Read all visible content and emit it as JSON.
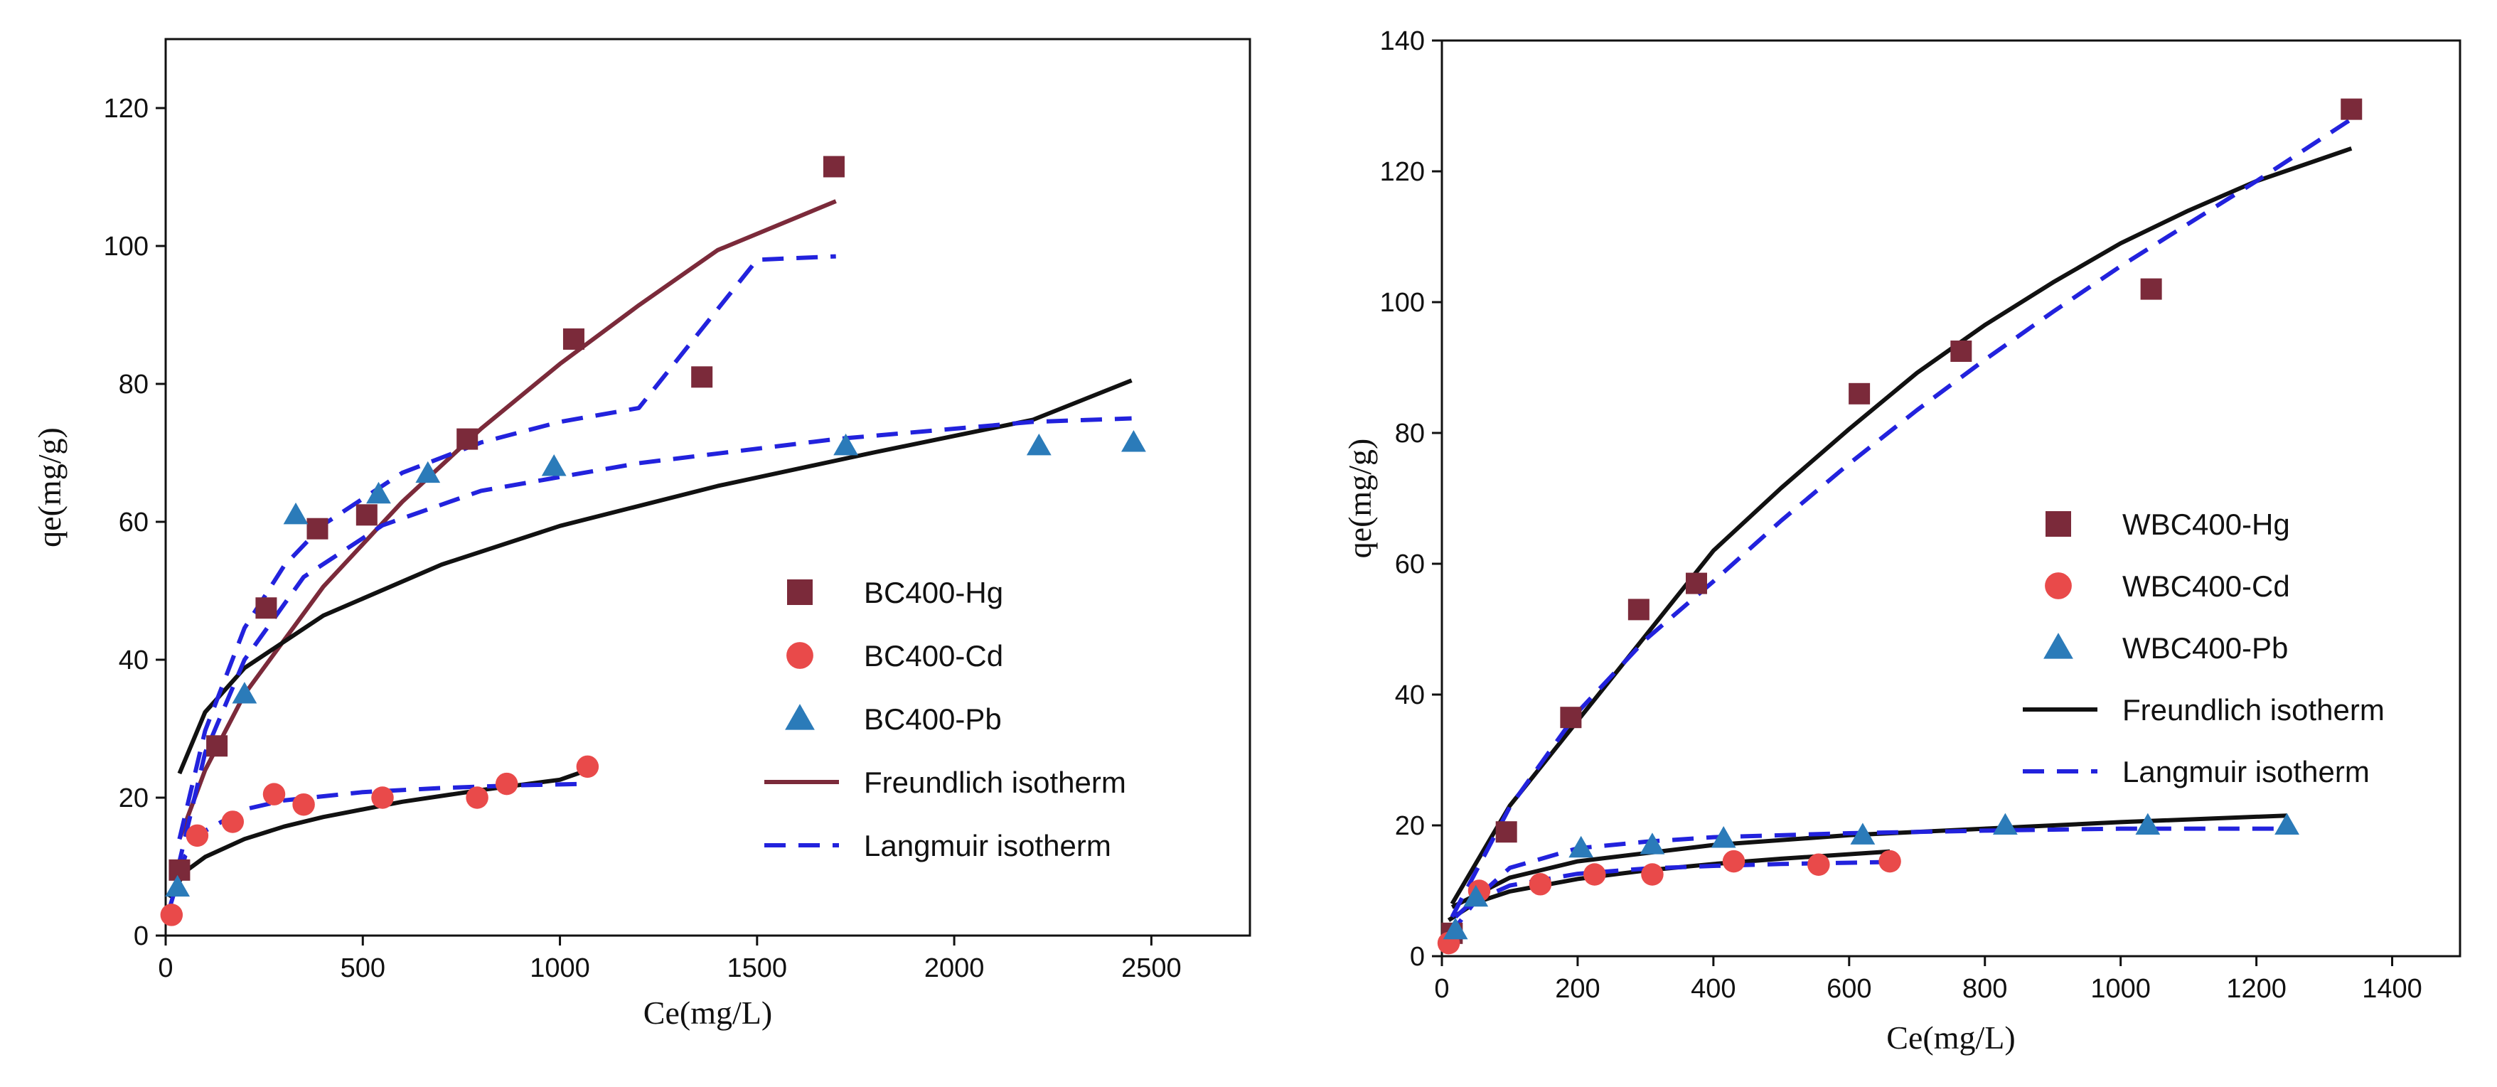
{
  "chart_data": [
    {
      "type": "scatter",
      "xlabel": "Ce(mg/L)",
      "ylabel": "qe(mg/g)",
      "xlim": [
        0,
        2750
      ],
      "ylim": [
        0,
        130
      ],
      "xticks": [
        0,
        500,
        1000,
        1500,
        2000,
        2500
      ],
      "yticks": [
        0,
        20,
        40,
        60,
        80,
        100,
        120
      ],
      "xtick_labels": [
        "0",
        "500",
        "1000",
        "1500",
        "2000",
        "2500"
      ],
      "ytick_labels": [
        "0",
        "20",
        "40",
        "60",
        "80",
        "100",
        "120"
      ],
      "legend_position": "center-right",
      "series": [
        {
          "name": "BC400-Hg",
          "kind": "points",
          "marker": "square",
          "color": "#7b2a3a",
          "x": [
            35,
            130,
            255,
            385,
            510,
            765,
            1035,
            1360,
            1695
          ],
          "y": [
            9.5,
            27.5,
            47.5,
            59,
            61,
            72,
            86.5,
            81,
            111.5
          ]
        },
        {
          "name": "BC400-Cd",
          "kind": "points",
          "marker": "circle",
          "color": "#e94a4a",
          "x": [
            15,
            80,
            170,
            275,
            350,
            550,
            790,
            865,
            1070
          ],
          "y": [
            3,
            14.5,
            16.5,
            20.5,
            19,
            20,
            20,
            22,
            24.5
          ]
        },
        {
          "name": "BC400-Pb",
          "kind": "points",
          "marker": "triangle",
          "color": "#2b7bb9",
          "x": [
            30,
            200,
            330,
            540,
            665,
            985,
            1725,
            2215,
            2455
          ],
          "y": [
            7,
            35,
            61,
            64,
            67,
            68,
            71,
            71,
            71.5
          ]
        },
        {
          "name": "Freundlich isotherm",
          "kind": "line",
          "color": "#7b2a3a",
          "dash": "solid",
          "x": [
            35,
            100,
            200,
            400,
            600,
            800,
            1000,
            1200,
            1400,
            1700
          ],
          "y": [
            14,
            24,
            35,
            50.6,
            62.9,
            73.5,
            82.9,
            91.4,
            99.4,
            106.5
          ]
        },
        {
          "name": "Freundlich isotherm (Pb)",
          "kind": "line",
          "color": "#111111",
          "dash": "solid",
          "in_legend": false,
          "x": [
            35,
            100,
            200,
            400,
            700,
            1000,
            1400,
            1800,
            2200,
            2450
          ],
          "y": [
            23.5,
            32.4,
            38.8,
            46.4,
            53.8,
            59.4,
            65.2,
            70.1,
            74.8,
            80.5
          ]
        },
        {
          "name": "Freundlich isotherm (Cd)",
          "kind": "line",
          "color": "#111111",
          "dash": "solid",
          "in_legend": false,
          "x": [
            10,
            50,
            100,
            200,
            300,
            400,
            600,
            800,
            1000,
            1070
          ],
          "y": [
            5.5,
            9.3,
            11.4,
            14,
            15.8,
            17.2,
            19.4,
            21.1,
            22.6,
            24
          ]
        },
        {
          "name": "Langmuir isotherm",
          "kind": "line",
          "color": "#2222dd",
          "dash": "dashed",
          "x": [
            35,
            100,
            200,
            300,
            400,
            600,
            800,
            1000,
            1200,
            1500,
            1700
          ],
          "y": [
            14,
            29.7,
            44.6,
            53.6,
            59.6,
            67.1,
            71.5,
            74.5,
            76.5,
            98,
            98.5
          ]
        },
        {
          "name": "Langmuir isotherm (Pb)",
          "kind": "line",
          "color": "#2222dd",
          "dash": "dashed",
          "in_legend": false,
          "x": [
            30,
            100,
            200,
            350,
            550,
            800,
            1200,
            1700,
            2200,
            2450
          ],
          "y": [
            9.5,
            26.5,
            40,
            52,
            59.5,
            64.5,
            68.5,
            72,
            74.5,
            75
          ]
        },
        {
          "name": "Langmuir isotherm (Cd)",
          "kind": "line",
          "color": "#2222dd",
          "dash": "dashed",
          "in_legend": false,
          "x": [
            10,
            50,
            100,
            200,
            300,
            500,
            700,
            900,
            1070
          ],
          "y": [
            4,
            11.6,
            15.2,
            18.3,
            19.6,
            20.8,
            21.4,
            21.8,
            22
          ]
        }
      ]
    },
    {
      "type": "scatter",
      "xlabel": "Ce(mg/L)",
      "ylabel": "qe(mg/g)",
      "xlim": [
        0,
        1500
      ],
      "ylim": [
        0,
        140
      ],
      "xticks": [
        0,
        200,
        400,
        600,
        800,
        1000,
        1200,
        1400
      ],
      "yticks": [
        0,
        20,
        40,
        60,
        80,
        100,
        120,
        140
      ],
      "xtick_labels": [
        "0",
        "200",
        "400",
        "600",
        "800",
        "1000",
        "1200",
        "1400"
      ],
      "ytick_labels": [
        "0",
        "20",
        "40",
        "60",
        "80",
        "100",
        "120",
        "140"
      ],
      "legend_position": "center-right",
      "series": [
        {
          "name": "WBC400-Hg",
          "kind": "points",
          "marker": "square",
          "color": "#7b2a3a",
          "x": [
            15,
            95,
            190,
            290,
            375,
            615,
            765,
            1045,
            1340
          ],
          "y": [
            3.5,
            19,
            36.5,
            53,
            57,
            86,
            92.5,
            102,
            129.5
          ]
        },
        {
          "name": "WBC400-Cd",
          "kind": "points",
          "marker": "circle",
          "color": "#e94a4a",
          "x": [
            10,
            55,
            145,
            225,
            310,
            430,
            555,
            660
          ],
          "y": [
            2,
            10,
            11,
            12.5,
            12.5,
            14.5,
            14,
            14.5
          ]
        },
        {
          "name": "WBC400-Pb",
          "kind": "points",
          "marker": "triangle",
          "color": "#2b7bb9",
          "x": [
            20,
            50,
            205,
            310,
            415,
            620,
            830,
            1040,
            1245
          ],
          "y": [
            4,
            9,
            16.5,
            17,
            18,
            18.5,
            20,
            20,
            20
          ]
        },
        {
          "name": "Freundlich isotherm",
          "kind": "line",
          "color": "#111111",
          "dash": "solid",
          "x": [
            15,
            100,
            200,
            300,
            400,
            500,
            600,
            700,
            800,
            900,
            1000,
            1100,
            1200,
            1340
          ],
          "y": [
            8,
            23,
            36,
            49,
            62,
            71.6,
            80.6,
            89.2,
            96.5,
            103,
            109,
            114,
            118.5,
            123.5
          ]
        },
        {
          "name": "Freundlich isotherm (Pb)",
          "kind": "line",
          "color": "#111111",
          "dash": "solid",
          "in_legend": false,
          "x": [
            15,
            100,
            200,
            400,
            600,
            800,
            1000,
            1245
          ],
          "y": [
            7.5,
            12,
            14.5,
            17,
            18.5,
            19.5,
            20.5,
            21.5
          ]
        },
        {
          "name": "Freundlich isotherm (Cd)",
          "kind": "line",
          "color": "#111111",
          "dash": "solid",
          "in_legend": false,
          "x": [
            10,
            50,
            100,
            200,
            300,
            400,
            500,
            660
          ],
          "y": [
            5.5,
            8.2,
            9.9,
            11.8,
            13.1,
            14.1,
            14.9,
            16
          ]
        },
        {
          "name": "Langmuir isotherm",
          "kind": "line",
          "color": "#2222dd",
          "dash": "dashed",
          "x": [
            15,
            100,
            200,
            300,
            400,
            500,
            600,
            700,
            800,
            900,
            1000,
            1100,
            1200,
            1340
          ],
          "y": [
            6,
            22.8,
            37.3,
            48.4,
            57.3,
            66.6,
            75.3,
            83.5,
            91.2,
            98.5,
            105.5,
            112,
            118.5,
            128
          ]
        },
        {
          "name": "Langmuir isotherm (Pb)",
          "kind": "line",
          "color": "#2222dd",
          "dash": "dashed",
          "in_legend": false,
          "x": [
            20,
            100,
            200,
            300,
            400,
            600,
            800,
            1000,
            1245
          ],
          "y": [
            6,
            13.5,
            16.5,
            17.5,
            18.2,
            18.8,
            19.2,
            19.5,
            19.5
          ]
        },
        {
          "name": "Langmuir isotherm (Cd)",
          "kind": "line",
          "color": "#2222dd",
          "dash": "dashed",
          "in_legend": false,
          "x": [
            10,
            50,
            100,
            200,
            300,
            400,
            500,
            660
          ],
          "y": [
            3,
            8.5,
            10.8,
            12.6,
            13.4,
            13.8,
            14.1,
            14.4
          ]
        }
      ]
    }
  ]
}
